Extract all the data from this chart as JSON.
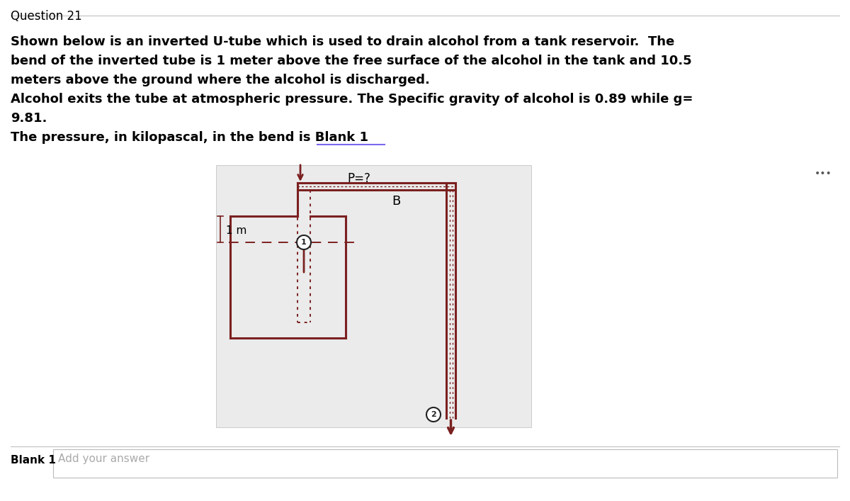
{
  "title": "Question 21",
  "line1": "Shown below is an inverted U-tube which is used to drain alcohol from a tank reservoir.  The",
  "line2": "bend of the inverted tube is 1 meter above the free surface of the alcohol in the tank and 10.5",
  "line3": "meters above the ground where the alcohol is discharged.",
  "line4": "Alcohol exits the tube at atmospheric pressure. The Specific gravity of alcohol is 0.89 while g=",
  "line5": "9.81.",
  "line6": "The pressure, in kilopascal, in the bend is Blank 1",
  "blank_label": "Blank 1",
  "blank_input": "Add your answer",
  "p_label": "P=?",
  "b_label": "B",
  "one_m_label": "1 m",
  "bg_color": "#ffffff",
  "diagram_bg": "#ebebeb",
  "tube_color": "#7B2020",
  "tube_lw": 2.2,
  "text_color": "#000000",
  "title_color": "#000000",
  "separator_color": "#c0c0c0",
  "blank_line_color": "#7B68EE",
  "dots_color": "#555555"
}
